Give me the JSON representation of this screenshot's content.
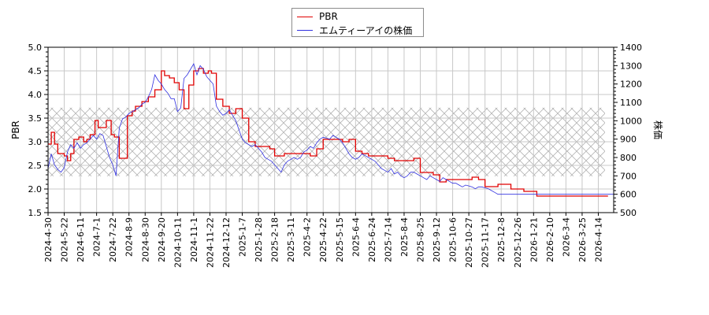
{
  "legend": {
    "items": [
      {
        "label": "PBR",
        "color": "#e00000"
      },
      {
        "label": "エムティーアイの株価",
        "color": "#3030e0"
      }
    ]
  },
  "axes": {
    "left_label": "PBR",
    "right_label": "株価"
  },
  "chart_data": {
    "type": "line",
    "title": "",
    "xlabel": "",
    "ylabel_left": "PBR",
    "ylabel_right": "株価",
    "ylim_left": [
      1.5,
      5.0
    ],
    "ylim_right": [
      500,
      1400
    ],
    "yticks_left": [
      1.5,
      2.0,
      2.5,
      3.0,
      3.5,
      4.0,
      4.5,
      5.0
    ],
    "yticks_right": [
      500,
      600,
      700,
      800,
      900,
      1000,
      1100,
      1200,
      1300,
      1400
    ],
    "grid": true,
    "legend_position": "top-center",
    "shaded_band_pbr": [
      2.27,
      3.72
    ],
    "x_tick_labels": [
      "2024-4-30",
      "2024-5-22",
      "2024-6-11",
      "2024-7-1",
      "2024-7-22",
      "2024-8-9",
      "2024-8-30",
      "2024-9-20",
      "2024-10-11",
      "2024-11-1",
      "2024-11-22",
      "2024-12-12",
      "2025-1-7",
      "2025-1-28",
      "2025-2-18",
      "2025-3-11",
      "2025-4-2",
      "2025-4-22",
      "2025-5-15",
      "2025-6-4",
      "2025-6-24",
      "2025-7-14",
      "2025-8-4",
      "2025-8-25",
      "2025-9-12",
      "2025-10-6",
      "2025-10-27",
      "2025-11-17",
      "2025-12-8",
      "2025-12-26",
      "2026-1-21",
      "2026-2-10",
      "2026-3-4",
      "2026-3-25",
      "2026-4-14"
    ],
    "series": [
      {
        "name": "PBR",
        "axis": "left",
        "color": "#e00000",
        "x_index": [
          0,
          0.2,
          0.4,
          0.6,
          1.0,
          1.2,
          1.4,
          1.6,
          1.9,
          2.2,
          2.4,
          2.6,
          2.9,
          3.1,
          3.4,
          3.6,
          3.9,
          4.1,
          4.4,
          4.6,
          4.9,
          5.2,
          5.4,
          5.8,
          6.2,
          6.6,
          7.0,
          7.2,
          7.5,
          7.8,
          8.1,
          8.4,
          8.7,
          9.0,
          9.3,
          9.6,
          9.9,
          10.1,
          10.4,
          10.8,
          11.2,
          11.6,
          12.0,
          12.4,
          12.8,
          13.1,
          13.4,
          13.7,
          14.0,
          14.3,
          14.6,
          15.0,
          15.4,
          15.8,
          16.2,
          16.6,
          17.0,
          17.4,
          17.8,
          18.2,
          18.6,
          19.0,
          19.4,
          19.8,
          20.2,
          20.6,
          21.0,
          21.4,
          21.8,
          22.2,
          22.6,
          23.0,
          23.4,
          23.8,
          24.2,
          24.6,
          25.0,
          25.4,
          25.8,
          26.2,
          26.6,
          27.0,
          27.4,
          27.8,
          28.2,
          28.6,
          29.0,
          29.4,
          29.8,
          30.2,
          30.6,
          31.0,
          31.4,
          31.8,
          32.2,
          32.6,
          33.0,
          33.4,
          33.8,
          34.2,
          34.6
        ],
        "values": [
          2.95,
          3.2,
          2.95,
          2.75,
          2.7,
          2.6,
          2.75,
          3.05,
          3.1,
          3.0,
          3.05,
          3.15,
          3.45,
          3.3,
          3.3,
          3.45,
          3.15,
          3.1,
          2.65,
          2.65,
          3.55,
          3.65,
          3.75,
          3.85,
          3.95,
          4.1,
          4.5,
          4.4,
          4.35,
          4.25,
          4.1,
          3.7,
          4.2,
          4.5,
          4.55,
          4.45,
          4.5,
          4.45,
          3.9,
          3.75,
          3.6,
          3.7,
          3.5,
          3.0,
          2.9,
          2.9,
          2.9,
          2.85,
          2.7,
          2.7,
          2.75,
          2.75,
          2.75,
          2.75,
          2.7,
          2.85,
          3.05,
          3.05,
          3.05,
          3.0,
          3.05,
          2.8,
          2.75,
          2.7,
          2.7,
          2.7,
          2.65,
          2.6,
          2.6,
          2.6,
          2.65,
          2.35,
          2.35,
          2.3,
          2.15,
          2.2,
          2.2,
          2.2,
          2.2,
          2.25,
          2.2,
          2.05,
          2.05,
          2.1,
          2.1,
          2.0,
          2.0,
          1.95,
          1.95,
          1.85,
          1.85,
          1.85,
          1.85,
          1.85,
          1.85,
          1.85,
          1.85,
          1.85,
          1.85,
          1.85,
          1.85
        ]
      },
      {
        "name": "エムティーアイの株価",
        "axis": "right",
        "color": "#3030e0",
        "x_index": [
          0,
          0.2,
          0.4,
          0.6,
          0.8,
          1.0,
          1.2,
          1.4,
          1.6,
          1.8,
          2.0,
          2.2,
          2.4,
          2.6,
          2.8,
          3.0,
          3.2,
          3.4,
          3.6,
          3.8,
          4.0,
          4.2,
          4.4,
          4.6,
          4.8,
          5.0,
          5.2,
          5.4,
          5.6,
          5.8,
          6.0,
          6.2,
          6.4,
          6.6,
          6.8,
          7.0,
          7.2,
          7.4,
          7.6,
          7.8,
          8.0,
          8.2,
          8.4,
          8.6,
          8.8,
          9.0,
          9.2,
          9.4,
          9.6,
          9.8,
          10.0,
          10.2,
          10.4,
          10.6,
          10.8,
          11.0,
          11.2,
          11.4,
          11.6,
          11.8,
          12.0,
          12.2,
          12.4,
          12.6,
          12.8,
          13.0,
          13.2,
          13.4,
          13.6,
          13.8,
          14.0,
          14.2,
          14.4,
          14.6,
          14.8,
          15.0,
          15.2,
          15.4,
          15.6,
          15.8,
          16.0,
          16.2,
          16.4,
          16.6,
          16.8,
          17.0,
          17.2,
          17.4,
          17.6,
          17.8,
          18.0,
          18.2,
          18.4,
          18.6,
          18.8,
          19.0,
          19.2,
          19.4,
          19.6,
          19.8,
          20.0,
          20.2,
          20.4,
          20.6,
          20.8,
          21.0,
          21.2,
          21.4,
          21.6,
          21.8,
          22.0,
          22.2,
          22.4,
          22.6,
          22.8,
          23.0,
          23.2,
          23.4,
          23.6,
          23.8,
          24.0,
          24.2,
          24.4,
          24.6,
          24.8,
          25.0,
          25.2,
          25.4,
          25.6,
          25.8,
          26.0,
          26.2,
          26.4,
          26.6,
          26.8,
          27.0,
          27.2,
          27.4,
          27.6,
          27.8,
          28.0,
          28.2,
          28.4,
          28.6,
          28.8,
          29.0,
          29.2,
          29.4,
          29.6,
          29.8,
          30.0,
          30.2,
          30.4,
          30.6,
          30.8,
          31.0,
          31.2,
          31.4,
          31.6,
          31.8,
          32.0,
          32.2,
          32.4,
          32.6,
          32.8,
          33.0,
          33.2,
          33.4,
          33.6,
          33.8,
          34.0,
          34.2,
          34.4,
          34.6,
          34.8,
          35.0
        ],
        "values": [
          740,
          820,
          760,
          735,
          720,
          745,
          830,
          870,
          850,
          880,
          850,
          870,
          880,
          900,
          920,
          900,
          930,
          920,
          860,
          800,
          760,
          700,
          960,
          1010,
          1020,
          1040,
          1050,
          1060,
          1070,
          1090,
          1100,
          1130,
          1170,
          1250,
          1220,
          1200,
          1170,
          1150,
          1120,
          1120,
          1050,
          1070,
          1230,
          1250,
          1280,
          1310,
          1250,
          1300,
          1280,
          1240,
          1220,
          1200,
          1080,
          1050,
          1030,
          1040,
          1060,
          1030,
          1000,
          950,
          900,
          880,
          870,
          860,
          870,
          850,
          830,
          800,
          790,
          780,
          760,
          740,
          720,
          760,
          780,
          790,
          800,
          790,
          800,
          830,
          840,
          860,
          850,
          880,
          900,
          910,
          905,
          900,
          920,
          910,
          900,
          880,
          850,
          820,
          800,
          790,
          800,
          820,
          810,
          800,
          790,
          780,
          760,
          740,
          730,
          720,
          740,
          710,
          720,
          700,
          690,
          700,
          720,
          720,
          710,
          700,
          690,
          680,
          700,
          690,
          680,
          670,
          690,
          680,
          670,
          660,
          660,
          650,
          640,
          650,
          645,
          640,
          630,
          640,
          640,
          635,
          630,
          620,
          610,
          600,
          600,
          600,
          600,
          600,
          600,
          600,
          600,
          600,
          600,
          600,
          600,
          600,
          600,
          600,
          600,
          600,
          600,
          600,
          600,
          600,
          600,
          600,
          600,
          600,
          600,
          600,
          600,
          600,
          600,
          600,
          600,
          600,
          600,
          600,
          600,
          600,
          600,
          600,
          600,
          600,
          600
        ]
      }
    ]
  }
}
